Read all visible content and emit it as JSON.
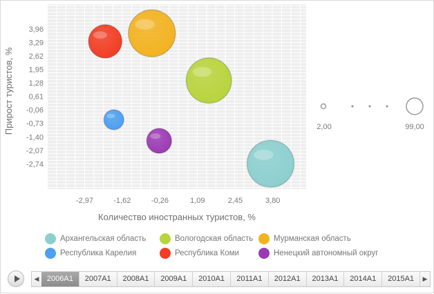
{
  "chart_data": {
    "type": "bubble",
    "xlabel": "Количество иностранных туристов, %",
    "ylabel": "Прирост туристов, %",
    "x_ticks": [
      "-2,97",
      "-1,62",
      "-0,26",
      "1,09",
      "2,45",
      "3,80"
    ],
    "y_ticks": [
      "3,96",
      "3,29",
      "2,62",
      "1,95",
      "1,28",
      "0,61",
      "-0,06",
      "-0,73",
      "-1,40",
      "-2,07",
      "-2,74"
    ],
    "xlim": [
      -4.3,
      5.0
    ],
    "ylim": [
      -4.0,
      5.2
    ],
    "grid": true,
    "size_legend": {
      "min_label": "2,00",
      "max_label": "99,00"
    },
    "series": [
      {
        "name": "Архангельская область",
        "x": 3.72,
        "y": -2.74,
        "size": 99,
        "color": "#8ccfcf"
      },
      {
        "name": "Вологодская область",
        "x": 1.5,
        "y": 1.4,
        "size": 92,
        "color": "#b8d43c"
      },
      {
        "name": "Мурманская область",
        "x": -0.55,
        "y": 3.75,
        "size": 99,
        "color": "#f3b21f"
      },
      {
        "name": "Республика Карелия",
        "x": -1.92,
        "y": -0.55,
        "size": 18,
        "color": "#4d9ff1"
      },
      {
        "name": "Республика Коми",
        "x": -2.23,
        "y": 3.35,
        "size": 50,
        "color": "#f23c23"
      },
      {
        "name": "Ненецкий автономный округ",
        "x": -0.29,
        "y": -1.6,
        "size": 28,
        "color": "#9b3ab5"
      }
    ]
  },
  "timeline": {
    "periods": [
      "2006A1",
      "2007A1",
      "2008A1",
      "2009A1",
      "2010A1",
      "2011A1",
      "2012A1",
      "2013A1",
      "2014A1",
      "2015A1"
    ],
    "active_period": "2006A1"
  }
}
